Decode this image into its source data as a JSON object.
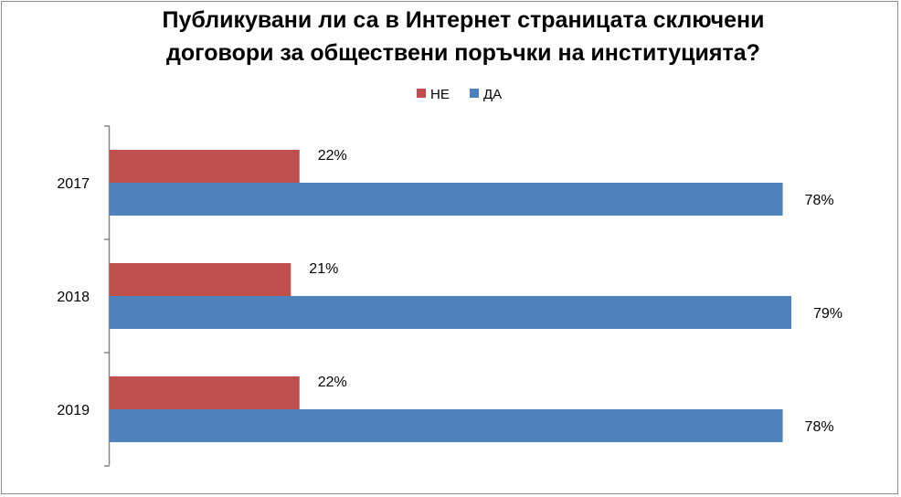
{
  "chart_data": {
    "type": "bar",
    "orientation": "horizontal",
    "title": "Публикувани ли са в Интернет страницата сключени договори за обществени поръчки на институцията?",
    "title_lines": [
      "Публикувани ли са в Интернет страницата сключени",
      "договори за обществени поръчки на институцията?"
    ],
    "categories": [
      "2017",
      "2018",
      "2019"
    ],
    "series": [
      {
        "name": "НЕ",
        "color": "#C0504D",
        "values": [
          22,
          21,
          22
        ],
        "labels": [
          "22%",
          "21%",
          "22%"
        ]
      },
      {
        "name": "ДА",
        "color": "#4F81BD",
        "values": [
          78,
          79,
          78
        ],
        "labels": [
          "78%",
          "79%",
          "78%"
        ]
      }
    ],
    "legend_order": [
      "НЕ",
      "ДА"
    ],
    "legend_position": "top",
    "value_unit": "%",
    "xlim": [
      0,
      79
    ],
    "grid": false
  }
}
